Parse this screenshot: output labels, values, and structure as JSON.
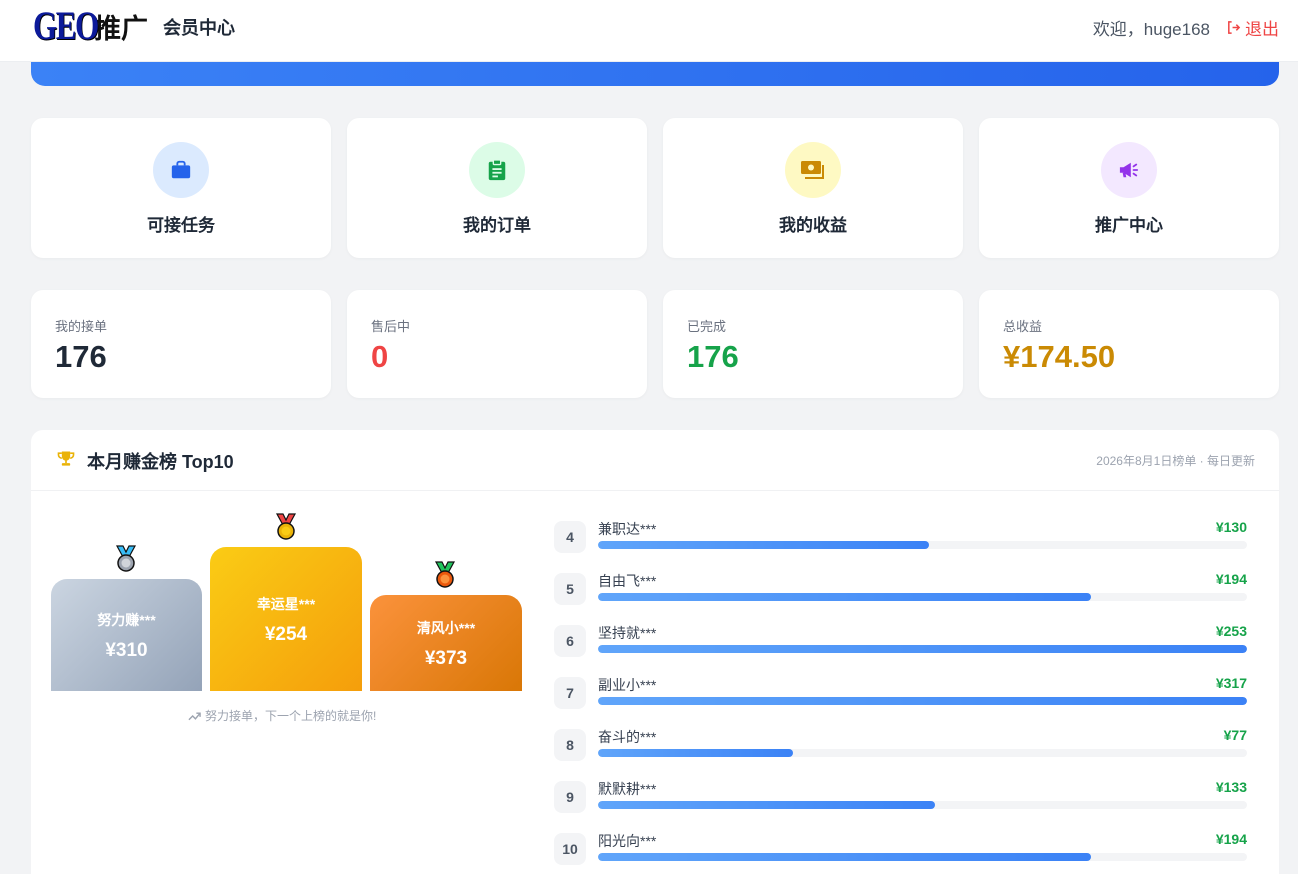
{
  "header": {
    "logo_main": "GEO",
    "logo_sub": "推广",
    "title": "会员中心",
    "welcome": "欢迎，huge168",
    "logout": "退出"
  },
  "quick_actions": [
    {
      "label": "可接任务",
      "icon": "briefcase-icon",
      "color": "#2563eb",
      "bg": "#dbeafe"
    },
    {
      "label": "我的订单",
      "icon": "clipboard-icon",
      "color": "#16a34a",
      "bg": "#dcfce7"
    },
    {
      "label": "我的收益",
      "icon": "money-icon",
      "color": "#ca8a04",
      "bg": "#fef9c3"
    },
    {
      "label": "推广中心",
      "icon": "megaphone-icon",
      "color": "#9333ea",
      "bg": "#f3e8ff"
    }
  ],
  "stats": [
    {
      "label": "我的接单",
      "value": "176",
      "color": "#1f2937"
    },
    {
      "label": "售后中",
      "value": "0",
      "color": "#ef4444"
    },
    {
      "label": "已完成",
      "value": "176",
      "color": "#16a34a"
    },
    {
      "label": "总收益",
      "value": "¥174.50",
      "color": "#ca8a04"
    }
  ],
  "leaderboard": {
    "title": "本月赚金榜 Top10",
    "subtitle": "2026年8月1日榜单 · 每日更新",
    "podium": [
      {
        "rank": 2,
        "name": "努力赚***",
        "amount": "¥310"
      },
      {
        "rank": 1,
        "name": "幸运星***",
        "amount": "¥254"
      },
      {
        "rank": 3,
        "name": "清风小***",
        "amount": "¥373"
      }
    ],
    "motto": "努力接单，下一个上榜的就是你!",
    "list": [
      {
        "rank": "4",
        "name": "兼职达***",
        "amount": "¥130",
        "progress": 0.51
      },
      {
        "rank": "5",
        "name": "自由飞***",
        "amount": "¥194",
        "progress": 0.76
      },
      {
        "rank": "6",
        "name": "坚持就***",
        "amount": "¥253",
        "progress": 1.0
      },
      {
        "rank": "7",
        "name": "副业小***",
        "amount": "¥317",
        "progress": 1.0
      },
      {
        "rank": "8",
        "name": "奋斗的***",
        "amount": "¥77",
        "progress": 0.3
      },
      {
        "rank": "9",
        "name": "默默耕***",
        "amount": "¥133",
        "progress": 0.52
      },
      {
        "rank": "10",
        "name": "阳光向***",
        "amount": "¥194",
        "progress": 0.76
      }
    ]
  }
}
